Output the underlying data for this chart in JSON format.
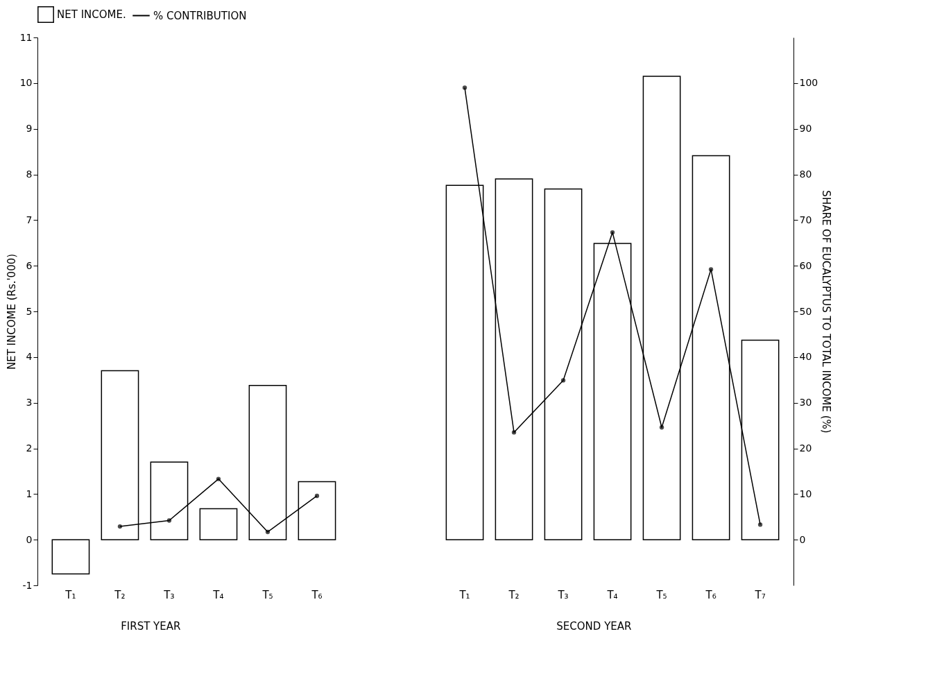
{
  "chart_data": {
    "type": "bar",
    "categories": [
      "T₁",
      "T₂",
      "T₃",
      "T₄",
      "T₅",
      "T₆",
      null,
      null,
      "T₁",
      "T₂",
      "T₃",
      "T₄",
      "T₅",
      "T₆",
      "T₇"
    ],
    "series": [
      {
        "name": "NET INCOME.",
        "color": "#ffffff",
        "values": [
          -0.75,
          3.7,
          1.7,
          0.68,
          3.38,
          1.27,
          null,
          null,
          7.76,
          7.9,
          7.68,
          6.49,
          10.15,
          8.41,
          4.37
        ]
      },
      {
        "name": "% CONTRIBUTION",
        "type": "line",
        "axis": "y2",
        "color": "#000000",
        "values": [
          null,
          2.9,
          4.2,
          13.3,
          1.7,
          9.6,
          null,
          null,
          99,
          23.5,
          34.9,
          67.3,
          24.6,
          59.2,
          3.3
        ]
      }
    ],
    "ylabel": "NET INCOME (Rs.'000)",
    "y2label": "SHARE OF EUCALYPTUS TO TOTAL INCOME (%)",
    "ylim": [
      -1,
      11
    ],
    "yticks": [
      -1,
      0,
      1,
      2,
      3,
      4,
      5,
      6,
      7,
      8,
      9,
      10,
      11
    ],
    "y2lim": [
      -10,
      110
    ],
    "y2ticks": [
      0,
      10,
      20,
      30,
      40,
      50,
      60,
      70,
      80,
      90,
      100
    ],
    "annotations": [
      "FIRST YEAR",
      "SECOND YEAR"
    ],
    "marker": "circle",
    "line_style": "solid",
    "grid": false,
    "legend": "top"
  }
}
